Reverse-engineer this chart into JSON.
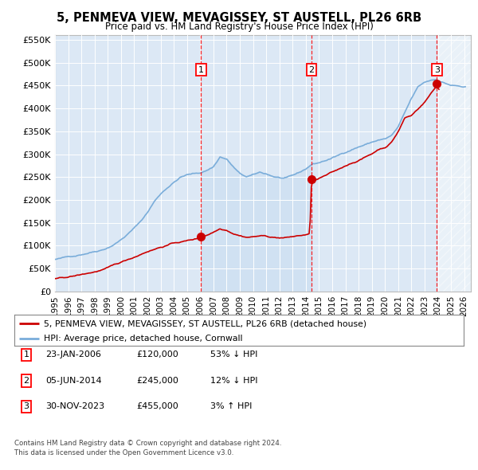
{
  "title": "5, PENMEVA VIEW, MEVAGISSEY, ST AUSTELL, PL26 6RB",
  "subtitle": "Price paid vs. HM Land Registry's House Price Index (HPI)",
  "ylim": [
    0,
    560000
  ],
  "yticks": [
    0,
    50000,
    100000,
    150000,
    200000,
    250000,
    300000,
    350000,
    400000,
    450000,
    500000,
    550000
  ],
  "ytick_labels": [
    "£0",
    "£50K",
    "£100K",
    "£150K",
    "£200K",
    "£250K",
    "£300K",
    "£350K",
    "£400K",
    "£450K",
    "£500K",
    "£550K"
  ],
  "hpi_color": "#7aadda",
  "price_color": "#cc0000",
  "sale_dates": [
    2006.07,
    2014.43,
    2023.92
  ],
  "sale_prices": [
    120000,
    245000,
    455000
  ],
  "sale_labels": [
    "1",
    "2",
    "3"
  ],
  "legend_label_price": "5, PENMEVA VIEW, MEVAGISSEY, ST AUSTELL, PL26 6RB (detached house)",
  "legend_label_hpi": "HPI: Average price, detached house, Cornwall",
  "table_rows": [
    [
      "1",
      "23-JAN-2006",
      "£120,000",
      "53% ↓ HPI"
    ],
    [
      "2",
      "05-JUN-2014",
      "£245,000",
      "12% ↓ HPI"
    ],
    [
      "3",
      "30-NOV-2023",
      "£455,000",
      "3% ↑ HPI"
    ]
  ],
  "footer": "Contains HM Land Registry data © Crown copyright and database right 2024.\nThis data is licensed under the Open Government Licence v3.0.",
  "hatch_start": 2024.0,
  "hatch_end": 2026.5,
  "shade_start": 2006.07,
  "shade_end": 2014.43,
  "xlim_start": 1995.0,
  "xlim_end": 2026.5
}
